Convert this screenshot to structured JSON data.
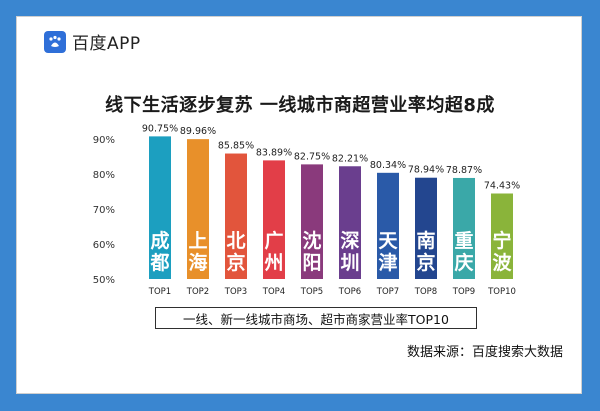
{
  "logo": {
    "text": "百度APP",
    "icon": "baidu-paw-icon"
  },
  "title": "线下生活逐步复苏 一线城市商超营业率均超8成",
  "legend_text": "一线、新一线城市商场、超市商家营业率TOP10",
  "source": "数据来源：百度搜索大数据",
  "chart_data": {
    "type": "bar",
    "title": "线下生活逐步复苏 一线城市商超营业率均超8成",
    "categories": [
      "TOP1",
      "TOP2",
      "TOP3",
      "TOP4",
      "TOP5",
      "TOP6",
      "TOP7",
      "TOP8",
      "TOP9",
      "TOP10"
    ],
    "cities": [
      "成都",
      "上海",
      "北京",
      "广州",
      "沈阳",
      "深圳",
      "天津",
      "南京",
      "重庆",
      "宁波"
    ],
    "values": [
      90.75,
      89.96,
      85.85,
      83.89,
      82.75,
      82.21,
      80.34,
      78.94,
      78.87,
      74.43
    ],
    "value_labels": [
      "90.75%",
      "89.96%",
      "85.85%",
      "83.89%",
      "82.75%",
      "82.21%",
      "80.34%",
      "78.94%",
      "78.87%",
      "74.43%"
    ],
    "colors": [
      "#1c9fc0",
      "#e8902a",
      "#e2553c",
      "#e23e48",
      "#8a3a7c",
      "#6a3e8e",
      "#2a5aa8",
      "#23468f",
      "#3aa8a8",
      "#8ab43a"
    ],
    "yticks": [
      "50%",
      "60%",
      "70%",
      "80%",
      "90%"
    ],
    "ylim": [
      50,
      92
    ],
    "grid": false
  }
}
